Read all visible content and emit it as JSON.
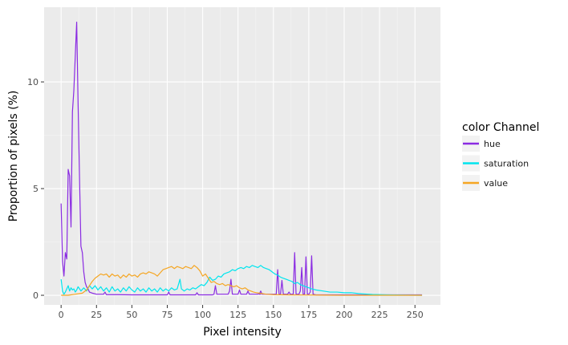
{
  "chart_data": {
    "type": "line",
    "xlabel": "Pixel intensity",
    "ylabel": "Proportion of pixels (%)",
    "xlim": [
      -12,
      268
    ],
    "ylim": [
      -0.45,
      13.5
    ],
    "x_ticks": [
      0,
      25,
      50,
      75,
      100,
      125,
      150,
      175,
      200,
      225,
      250
    ],
    "y_ticks": [
      0,
      5,
      10
    ],
    "grid": true,
    "legend": {
      "title": "color Channel",
      "position": "right"
    },
    "series": [
      {
        "name": "hue",
        "color": "#8a2be2",
        "points": [
          [
            0,
            4.3
          ],
          [
            1,
            1.6
          ],
          [
            2,
            0.9
          ],
          [
            3,
            2.0
          ],
          [
            4,
            1.7
          ],
          [
            5,
            5.9
          ],
          [
            6,
            5.6
          ],
          [
            7,
            3.2
          ],
          [
            8,
            8.6
          ],
          [
            9,
            9.6
          ],
          [
            10,
            11.2
          ],
          [
            11,
            12.8
          ],
          [
            12,
            9.0
          ],
          [
            13,
            5.5
          ],
          [
            14,
            2.3
          ],
          [
            15,
            2.0
          ],
          [
            16,
            1.1
          ],
          [
            17,
            0.6
          ],
          [
            18,
            0.4
          ],
          [
            19,
            0.3
          ],
          [
            20,
            0.15
          ],
          [
            22,
            0.1
          ],
          [
            25,
            0.05
          ],
          [
            30,
            0.05
          ],
          [
            31,
            0.15
          ],
          [
            32,
            0.03
          ],
          [
            40,
            0.03
          ],
          [
            50,
            0.02
          ],
          [
            60,
            0.02
          ],
          [
            70,
            0.02
          ],
          [
            75,
            0.02
          ],
          [
            76,
            0.15
          ],
          [
            77,
            0.02
          ],
          [
            90,
            0.02
          ],
          [
            95,
            0.02
          ],
          [
            96,
            0.12
          ],
          [
            97,
            0.02
          ],
          [
            107,
            0.02
          ],
          [
            108,
            0.05
          ],
          [
            109,
            0.45
          ],
          [
            110,
            0.05
          ],
          [
            112,
            0.05
          ],
          [
            118,
            0.05
          ],
          [
            119,
            0.2
          ],
          [
            120,
            0.75
          ],
          [
            121,
            0.05
          ],
          [
            125,
            0.05
          ],
          [
            126,
            0.25
          ],
          [
            127,
            0.05
          ],
          [
            131,
            0.05
          ],
          [
            132,
            0.2
          ],
          [
            133,
            0.05
          ],
          [
            139,
            0.05
          ],
          [
            140,
            0.1
          ],
          [
            141,
            0.05
          ],
          [
            140,
            0.05
          ],
          [
            141,
            0.2
          ],
          [
            142,
            0.05
          ],
          [
            150,
            0.05
          ],
          [
            152,
            0.05
          ],
          [
            153,
            1.2
          ],
          [
            154,
            0.05
          ],
          [
            155,
            0.05
          ],
          [
            156,
            0.7
          ],
          [
            157,
            0.05
          ],
          [
            160,
            0.05
          ],
          [
            161,
            0.15
          ],
          [
            162,
            0.05
          ],
          [
            164,
            0.05
          ],
          [
            165,
            2.0
          ],
          [
            166,
            0.05
          ],
          [
            168,
            0.05
          ],
          [
            169,
            0.2
          ],
          [
            170,
            1.3
          ],
          [
            171,
            0.05
          ],
          [
            172,
            0.05
          ],
          [
            173,
            1.8
          ],
          [
            174,
            0.05
          ],
          [
            175,
            0.05
          ],
          [
            176,
            0.15
          ],
          [
            177,
            1.85
          ],
          [
            178,
            0.05
          ],
          [
            180,
            0.02
          ],
          [
            200,
            0.02
          ],
          [
            220,
            0.02
          ],
          [
            240,
            0.02
          ],
          [
            255,
            0.02
          ]
        ]
      },
      {
        "name": "saturation",
        "color": "#00e5ee",
        "points": [
          [
            0,
            0.75
          ],
          [
            1,
            0.2
          ],
          [
            2,
            0.05
          ],
          [
            3,
            0.15
          ],
          [
            4,
            0.3
          ],
          [
            5,
            0.45
          ],
          [
            6,
            0.2
          ],
          [
            7,
            0.35
          ],
          [
            8,
            0.25
          ],
          [
            9,
            0.3
          ],
          [
            10,
            0.15
          ],
          [
            11,
            0.25
          ],
          [
            12,
            0.4
          ],
          [
            14,
            0.2
          ],
          [
            16,
            0.35
          ],
          [
            18,
            0.2
          ],
          [
            20,
            0.45
          ],
          [
            22,
            0.3
          ],
          [
            24,
            0.45
          ],
          [
            26,
            0.25
          ],
          [
            28,
            0.4
          ],
          [
            30,
            0.2
          ],
          [
            32,
            0.35
          ],
          [
            34,
            0.15
          ],
          [
            36,
            0.4
          ],
          [
            38,
            0.2
          ],
          [
            40,
            0.3
          ],
          [
            42,
            0.15
          ],
          [
            44,
            0.35
          ],
          [
            46,
            0.2
          ],
          [
            48,
            0.4
          ],
          [
            50,
            0.25
          ],
          [
            52,
            0.15
          ],
          [
            54,
            0.35
          ],
          [
            56,
            0.2
          ],
          [
            58,
            0.3
          ],
          [
            60,
            0.15
          ],
          [
            62,
            0.35
          ],
          [
            64,
            0.2
          ],
          [
            66,
            0.3
          ],
          [
            68,
            0.15
          ],
          [
            70,
            0.35
          ],
          [
            72,
            0.2
          ],
          [
            74,
            0.3
          ],
          [
            76,
            0.2
          ],
          [
            78,
            0.35
          ],
          [
            80,
            0.25
          ],
          [
            82,
            0.3
          ],
          [
            84,
            0.75
          ],
          [
            85,
            0.3
          ],
          [
            87,
            0.2
          ],
          [
            89,
            0.3
          ],
          [
            91,
            0.25
          ],
          [
            93,
            0.35
          ],
          [
            95,
            0.3
          ],
          [
            97,
            0.4
          ],
          [
            99,
            0.5
          ],
          [
            101,
            0.45
          ],
          [
            103,
            0.6
          ],
          [
            105,
            0.85
          ],
          [
            107,
            0.7
          ],
          [
            109,
            0.75
          ],
          [
            111,
            0.9
          ],
          [
            113,
            0.85
          ],
          [
            115,
            1.0
          ],
          [
            117,
            1.05
          ],
          [
            119,
            1.1
          ],
          [
            121,
            1.2
          ],
          [
            123,
            1.15
          ],
          [
            125,
            1.25
          ],
          [
            127,
            1.3
          ],
          [
            129,
            1.25
          ],
          [
            131,
            1.35
          ],
          [
            133,
            1.3
          ],
          [
            135,
            1.4
          ],
          [
            137,
            1.35
          ],
          [
            139,
            1.3
          ],
          [
            141,
            1.4
          ],
          [
            143,
            1.3
          ],
          [
            145,
            1.25
          ],
          [
            147,
            1.2
          ],
          [
            149,
            1.1
          ],
          [
            151,
            1.0
          ],
          [
            153,
            0.95
          ],
          [
            155,
            0.85
          ],
          [
            157,
            0.8
          ],
          [
            159,
            0.75
          ],
          [
            161,
            0.7
          ],
          [
            163,
            0.65
          ],
          [
            165,
            0.55
          ],
          [
            167,
            0.6
          ],
          [
            169,
            0.5
          ],
          [
            171,
            0.45
          ],
          [
            173,
            0.4
          ],
          [
            175,
            0.35
          ],
          [
            177,
            0.3
          ],
          [
            180,
            0.25
          ],
          [
            185,
            0.2
          ],
          [
            190,
            0.15
          ],
          [
            195,
            0.15
          ],
          [
            200,
            0.12
          ],
          [
            205,
            0.12
          ],
          [
            210,
            0.08
          ],
          [
            215,
            0.06
          ],
          [
            220,
            0.04
          ],
          [
            225,
            0.03
          ],
          [
            230,
            0.02
          ],
          [
            240,
            0.01
          ],
          [
            255,
            0.0
          ]
        ]
      },
      {
        "name": "value",
        "color": "#f5a623",
        "points": [
          [
            0,
            0.0
          ],
          [
            5,
            0.0
          ],
          [
            10,
            0.05
          ],
          [
            15,
            0.1
          ],
          [
            18,
            0.25
          ],
          [
            20,
            0.45
          ],
          [
            22,
            0.65
          ],
          [
            24,
            0.8
          ],
          [
            26,
            0.9
          ],
          [
            28,
            1.0
          ],
          [
            30,
            0.95
          ],
          [
            32,
            1.0
          ],
          [
            34,
            0.85
          ],
          [
            36,
            1.0
          ],
          [
            38,
            0.9
          ],
          [
            40,
            0.95
          ],
          [
            42,
            0.8
          ],
          [
            44,
            0.95
          ],
          [
            46,
            0.85
          ],
          [
            48,
            1.0
          ],
          [
            50,
            0.9
          ],
          [
            52,
            0.95
          ],
          [
            54,
            0.85
          ],
          [
            56,
            1.0
          ],
          [
            58,
            1.05
          ],
          [
            60,
            1.0
          ],
          [
            62,
            1.1
          ],
          [
            64,
            1.05
          ],
          [
            66,
            1.0
          ],
          [
            68,
            0.9
          ],
          [
            70,
            1.05
          ],
          [
            72,
            1.2
          ],
          [
            74,
            1.25
          ],
          [
            76,
            1.3
          ],
          [
            78,
            1.35
          ],
          [
            80,
            1.25
          ],
          [
            82,
            1.35
          ],
          [
            84,
            1.3
          ],
          [
            86,
            1.25
          ],
          [
            88,
            1.35
          ],
          [
            90,
            1.3
          ],
          [
            92,
            1.25
          ],
          [
            94,
            1.4
          ],
          [
            96,
            1.3
          ],
          [
            98,
            1.15
          ],
          [
            100,
            0.9
          ],
          [
            102,
            1.0
          ],
          [
            104,
            0.8
          ],
          [
            106,
            0.6
          ],
          [
            108,
            0.65
          ],
          [
            110,
            0.55
          ],
          [
            112,
            0.5
          ],
          [
            114,
            0.55
          ],
          [
            116,
            0.45
          ],
          [
            118,
            0.5
          ],
          [
            120,
            0.45
          ],
          [
            122,
            0.4
          ],
          [
            124,
            0.45
          ],
          [
            126,
            0.35
          ],
          [
            128,
            0.3
          ],
          [
            130,
            0.35
          ],
          [
            132,
            0.25
          ],
          [
            134,
            0.2
          ],
          [
            136,
            0.15
          ],
          [
            138,
            0.12
          ],
          [
            140,
            0.1
          ],
          [
            145,
            0.05
          ],
          [
            150,
            0.03
          ],
          [
            160,
            0.02
          ],
          [
            180,
            0.01
          ],
          [
            200,
            0.0
          ],
          [
            255,
            0.0
          ]
        ]
      }
    ]
  }
}
